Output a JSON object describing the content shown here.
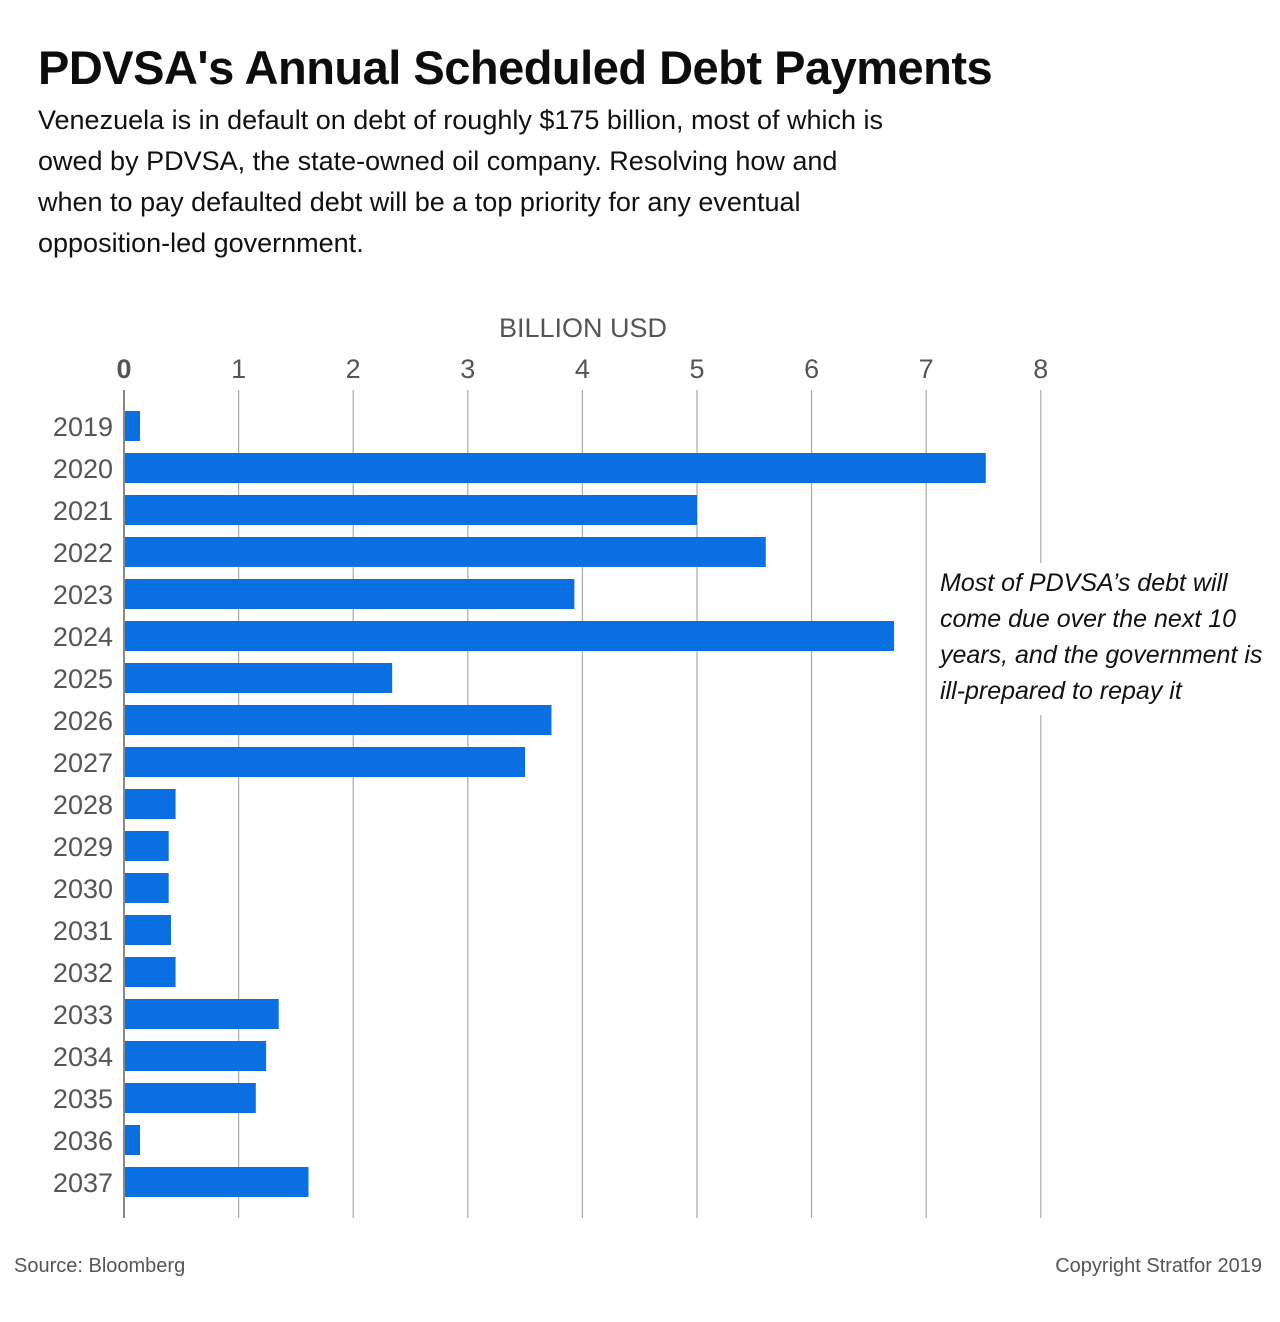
{
  "title": "PDVSA's Annual Scheduled Debt Payments",
  "subtitle": "Venezuela is in default on debt of roughly $175 billion, most of which is owed by PDVSA, the state-owned oil company. Resolving how and when to pay defaulted debt will be a top priority for any eventual opposition-led government.",
  "annotation": "Most of PDVSA’s debt will come due over the next 10 years, and the government is ill-prepared to repay it",
  "footer": {
    "source": "Source: Bloomberg",
    "copyright": "Copyright Stratfor 2019"
  },
  "colors": {
    "bar": "#0a6fe0",
    "grid": "#a9a9a9",
    "tick_text": "#555555"
  },
  "chart_data": {
    "type": "bar",
    "orientation": "horizontal",
    "title": "PDVSA's Annual Scheduled Debt Payments",
    "xlabel": "BILLION USD",
    "ylabel": "",
    "xlim": [
      0,
      8
    ],
    "x_ticks": [
      0,
      1,
      2,
      3,
      4,
      5,
      6,
      7,
      8
    ],
    "x_axis_position": "top",
    "grid": true,
    "categories": [
      "2019",
      "2020",
      "2021",
      "2022",
      "2023",
      "2024",
      "2025",
      "2026",
      "2027",
      "2028",
      "2029",
      "2030",
      "2031",
      "2032",
      "2033",
      "2034",
      "2035",
      "2036",
      "2037"
    ],
    "values": [
      0.14,
      7.52,
      5.0,
      5.6,
      3.93,
      6.72,
      2.34,
      3.73,
      3.5,
      0.45,
      0.39,
      0.39,
      0.41,
      0.45,
      1.35,
      1.24,
      1.15,
      0.14,
      1.61
    ]
  }
}
